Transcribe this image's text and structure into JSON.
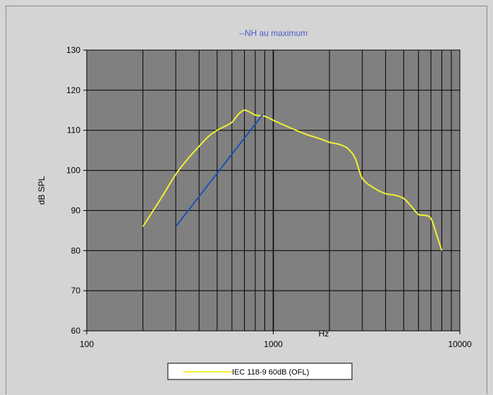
{
  "chart_data": {
    "type": "line",
    "title": "--NH au maximum",
    "xlabel": "Hz",
    "ylabel": "dB SPL",
    "x_scale": "log",
    "xlim": [
      100,
      10000
    ],
    "ylim": [
      60,
      130
    ],
    "y_ticks": [
      60,
      70,
      80,
      90,
      100,
      110,
      120,
      130
    ],
    "x_ticks": [
      100,
      1000,
      10000
    ],
    "x_tick_labels": [
      "100",
      "1000",
      "10000"
    ],
    "grid": true,
    "legend_position": "bottom",
    "series": [
      {
        "name": "IEC 118-9 60dB (OFL)",
        "color": "#f0f032",
        "x": [
          200,
          250,
          300,
          350,
          400,
          450,
          500,
          550,
          600,
          650,
          700,
          750,
          800,
          900,
          1000,
          1250,
          1500,
          1750,
          2000,
          2250,
          2500,
          2750,
          3000,
          3500,
          4000,
          4500,
          5000,
          5500,
          6000,
          6500,
          7000,
          7500,
          8000
        ],
        "y": [
          86,
          93,
          99,
          103,
          106,
          108.5,
          110,
          111,
          112,
          114,
          115,
          114.5,
          113.8,
          113.5,
          112.5,
          110.5,
          109,
          108,
          107,
          106.5,
          105.5,
          103,
          98,
          95.5,
          94.2,
          93.8,
          93,
          91,
          89,
          88.8,
          88,
          84,
          80
        ]
      },
      {
        "name": "",
        "color": "#1f4fb8",
        "x": [
          300,
          880
        ],
        "y": [
          86,
          114
        ]
      }
    ]
  }
}
